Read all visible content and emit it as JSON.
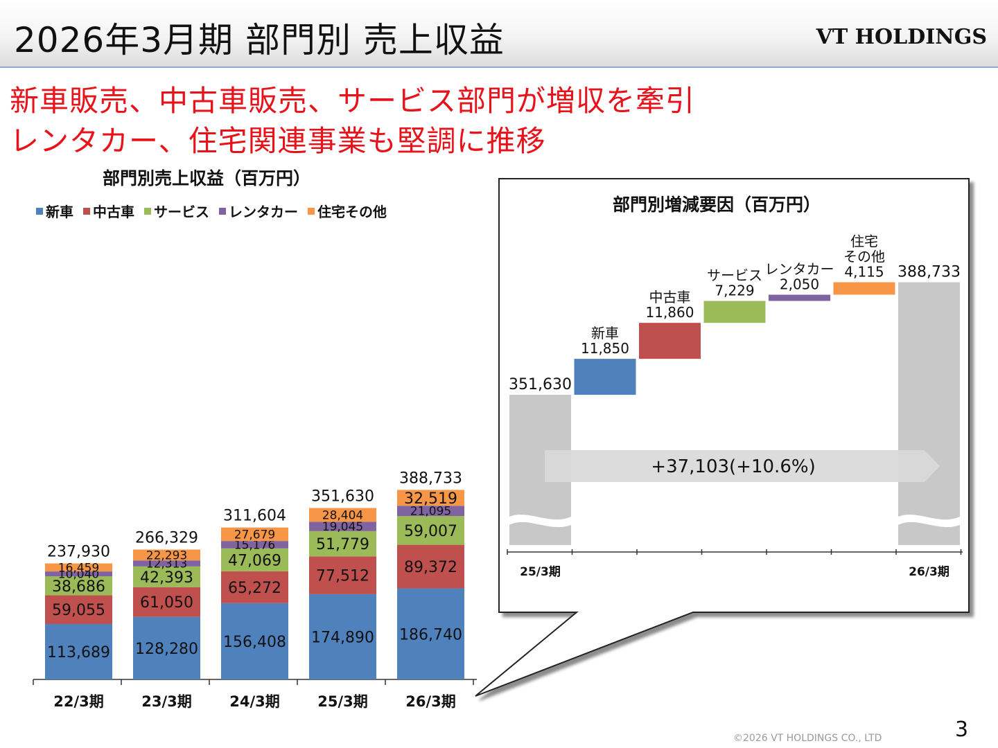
{
  "header": {
    "title": "2026年3月期 部門別 売上収益",
    "brand": "VT HOLDINGS"
  },
  "headline": {
    "line1": "新車販売、中古車販売、サービス部門が増収を牽引",
    "line2": "レンタカー、住宅関連事業も堅調に推移"
  },
  "legend": [
    {
      "label": "新車",
      "color": "#4f81bd"
    },
    {
      "label": "中古車",
      "color": "#c0504d"
    },
    {
      "label": "サービス",
      "color": "#9bbb59"
    },
    {
      "label": "レンタカー",
      "color": "#8064a2"
    },
    {
      "label": "住宅その他",
      "color": "#f79646"
    }
  ],
  "chart_data": [
    {
      "type": "bar",
      "stacked": true,
      "title": "部門別売上収益（百万円）",
      "categories": [
        "22/3期",
        "23/3期",
        "24/3期",
        "25/3期",
        "26/3期"
      ],
      "series": [
        {
          "name": "新車",
          "color": "#4f81bd",
          "values": [
            113689,
            128280,
            156408,
            174890,
            186740
          ],
          "labels": [
            "113,689",
            "128,280",
            "156,408",
            "174,890",
            "186,740"
          ]
        },
        {
          "name": "中古車",
          "color": "#c0504d",
          "values": [
            59055,
            61050,
            65272,
            77512,
            89372
          ],
          "labels": [
            "59,055",
            "61,050",
            "65,272",
            "77,512",
            "89,372"
          ]
        },
        {
          "name": "サービス",
          "color": "#9bbb59",
          "values": [
            38686,
            42393,
            47069,
            51779,
            59007
          ],
          "labels": [
            "38,686",
            "42,393",
            "47,069",
            "51,779",
            "59,007"
          ]
        },
        {
          "name": "レンタカー",
          "color": "#8064a2",
          "values": [
            10040,
            12313,
            15176,
            19045,
            21095
          ],
          "labels": [
            "10,040",
            "12,313",
            "15,176",
            "19,045",
            "21,095"
          ]
        },
        {
          "name": "住宅その他",
          "color": "#f79646",
          "values": [
            16459,
            22293,
            27679,
            28404,
            32519
          ],
          "labels": [
            "16,459",
            "22,293",
            "27,679",
            "28,404",
            "32,519"
          ]
        }
      ],
      "totals": [
        237930,
        266329,
        311604,
        351630,
        388733
      ],
      "total_labels": [
        "237,930",
        "266,329",
        "311,604",
        "351,630",
        "388,733"
      ],
      "ylim": [
        0,
        400000
      ],
      "grid": false
    },
    {
      "type": "waterfall",
      "title": "部門別増減要因（百万円）",
      "start": {
        "category": "25/3期",
        "value": 351630,
        "label": "351,630"
      },
      "end": {
        "category": "26/3期",
        "value": 388733,
        "label": "388,733"
      },
      "steps": [
        {
          "name": "新車",
          "value": 11850,
          "label": "11,850",
          "color": "#4f81bd"
        },
        {
          "name": "中古車",
          "value": 11860,
          "label": "11,860",
          "color": "#c0504d"
        },
        {
          "name": "サービス",
          "value": 7229,
          "label": "7,229",
          "color": "#9bbb59"
        },
        {
          "name": "レンタカー",
          "value": 2050,
          "label": "2,050",
          "color": "#8064a2"
        },
        {
          "name": "住宅\nその他",
          "value": 4115,
          "label": "4,115",
          "color": "#f79646"
        }
      ],
      "start_bar_color": "#c8c8c8",
      "axis_break": true,
      "ylim": [
        280000,
        400000
      ],
      "annotation": "+37,103(+10.6%)"
    }
  ],
  "footer": {
    "copyright": "©2026 VT HOLDINGS CO., LTD",
    "page_number": "3"
  }
}
